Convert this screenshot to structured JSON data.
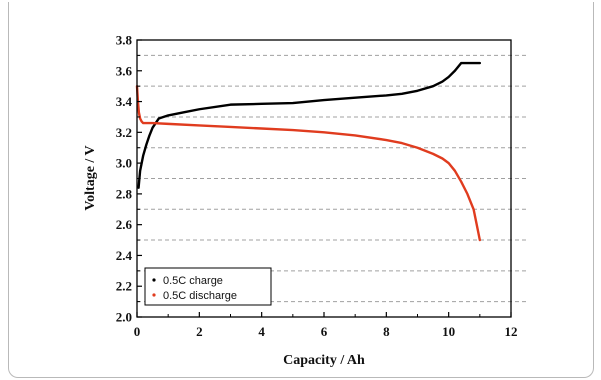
{
  "chart_data": {
    "type": "line",
    "xlabel": "Capacity / Ah",
    "ylabel": "Voltage / V",
    "xlim": [
      0,
      12
    ],
    "ylim": [
      2.0,
      3.8
    ],
    "x_ticks": [
      "0",
      "2",
      "4",
      "6",
      "8",
      "10",
      "12"
    ],
    "y_ticks": [
      "2.0",
      "2.2",
      "2.4",
      "2.6",
      "2.8",
      "3.0",
      "3.2",
      "3.4",
      "3.6",
      "3.8"
    ],
    "grid_lines": [
      2.1,
      2.3,
      2.5,
      2.7,
      2.9,
      3.1,
      3.3,
      3.5,
      3.7
    ],
    "grid": "dashed horizontal",
    "legend_position": "bottom-left",
    "series": [
      {
        "name": "0.5C charge",
        "color": "#000000",
        "x": [
          0.05,
          0.1,
          0.2,
          0.3,
          0.4,
          0.5,
          0.7,
          1.0,
          1.5,
          2.0,
          3.0,
          4.0,
          5.0,
          6.0,
          7.0,
          8.0,
          8.5,
          9.0,
          9.5,
          9.8,
          10.0,
          10.2,
          10.4,
          10.7,
          11.0
        ],
        "y": [
          2.84,
          2.95,
          3.05,
          3.12,
          3.18,
          3.23,
          3.29,
          3.31,
          3.33,
          3.35,
          3.38,
          3.385,
          3.39,
          3.41,
          3.425,
          3.44,
          3.45,
          3.47,
          3.5,
          3.53,
          3.56,
          3.6,
          3.65,
          3.65,
          3.65
        ]
      },
      {
        "name": "0.5C discharge",
        "color": "#e03c1f",
        "x": [
          0.0,
          0.03,
          0.06,
          0.1,
          0.15,
          0.2,
          0.3,
          0.5,
          1.0,
          2.0,
          3.0,
          4.0,
          5.0,
          6.0,
          7.0,
          8.0,
          8.5,
          9.0,
          9.5,
          9.8,
          10.0,
          10.2,
          10.4,
          10.6,
          10.8,
          10.9,
          11.0
        ],
        "y": [
          3.5,
          3.4,
          3.33,
          3.29,
          3.27,
          3.26,
          3.26,
          3.26,
          3.255,
          3.245,
          3.235,
          3.225,
          3.215,
          3.2,
          3.18,
          3.15,
          3.13,
          3.1,
          3.06,
          3.03,
          3.0,
          2.95,
          2.88,
          2.8,
          2.7,
          2.6,
          2.5
        ]
      }
    ]
  }
}
